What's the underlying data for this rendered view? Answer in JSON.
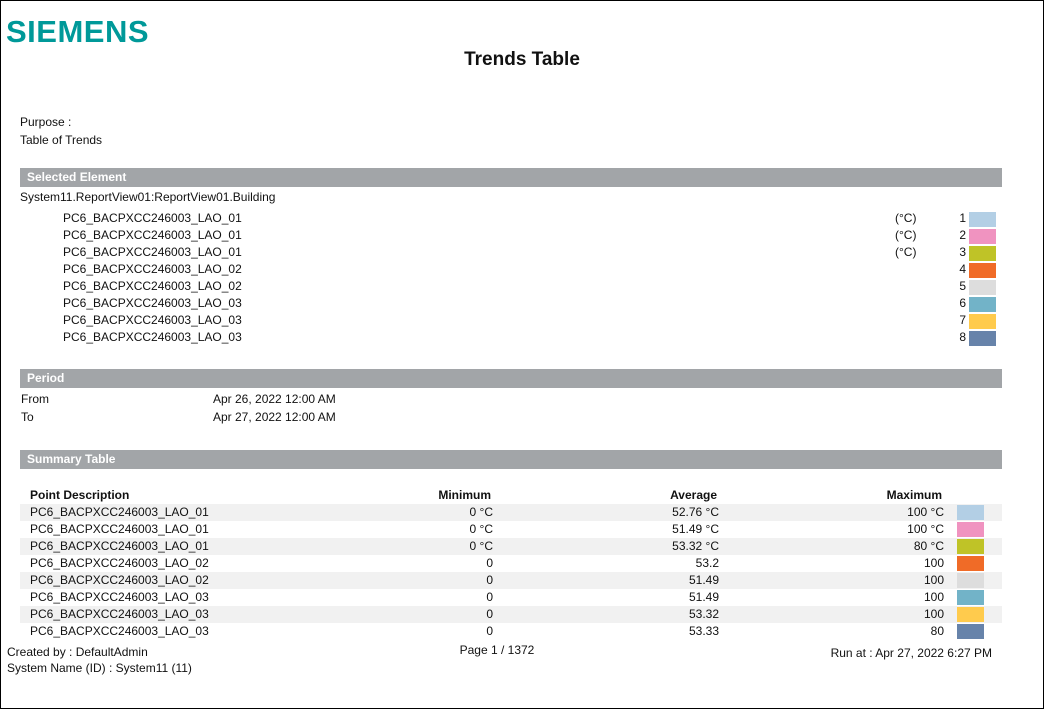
{
  "logo": "SIEMENS",
  "title": "Trends Table",
  "purpose": {
    "label": "Purpose :",
    "value": "Table of Trends"
  },
  "selected": {
    "header": "Selected Element",
    "path": "System11.ReportView01:ReportView01.Building",
    "items": [
      {
        "name": "PC6_BACPXCC246003_LAO_01",
        "unit": "(°C)",
        "num": "1",
        "color": "#b3cfe5"
      },
      {
        "name": "PC6_BACPXCC246003_LAO_01",
        "unit": "(°C)",
        "num": "2",
        "color": "#f093c0"
      },
      {
        "name": "PC6_BACPXCC246003_LAO_01",
        "unit": "(°C)",
        "num": "3",
        "color": "#bfc327"
      },
      {
        "name": "PC6_BACPXCC246003_LAO_02",
        "unit": "",
        "num": "4",
        "color": "#f06b27"
      },
      {
        "name": "PC6_BACPXCC246003_LAO_02",
        "unit": "",
        "num": "5",
        "color": "#dddddd"
      },
      {
        "name": "PC6_BACPXCC246003_LAO_03",
        "unit": "",
        "num": "6",
        "color": "#72b3c8"
      },
      {
        "name": "PC6_BACPXCC246003_LAO_03",
        "unit": "",
        "num": "7",
        "color": "#ffcb4d"
      },
      {
        "name": "PC6_BACPXCC246003_LAO_03",
        "unit": "",
        "num": "8",
        "color": "#6783aa"
      }
    ]
  },
  "period": {
    "header": "Period",
    "from_label": "From",
    "from": "Apr 26, 2022 12:00 AM",
    "to_label": "To",
    "to": "Apr 27, 2022 12:00 AM"
  },
  "summary": {
    "header": "Summary Table",
    "columns": [
      "Point Description",
      "Minimum",
      "Average",
      "Maximum"
    ],
    "rows": [
      {
        "desc": "PC6_BACPXCC246003_LAO_01",
        "min": "0 °C",
        "avg": "52.76 °C",
        "max": "100 °C",
        "color": "#b3cfe5"
      },
      {
        "desc": "PC6_BACPXCC246003_LAO_01",
        "min": "0 °C",
        "avg": "51.49 °C",
        "max": "100 °C",
        "color": "#f093c0"
      },
      {
        "desc": "PC6_BACPXCC246003_LAO_01",
        "min": "0 °C",
        "avg": "53.32 °C",
        "max": "80 °C",
        "color": "#bfc327"
      },
      {
        "desc": "PC6_BACPXCC246003_LAO_02",
        "min": "0",
        "avg": "53.2",
        "max": "100",
        "color": "#f06b27"
      },
      {
        "desc": "PC6_BACPXCC246003_LAO_02",
        "min": "0",
        "avg": "51.49",
        "max": "100",
        "color": "#dddddd"
      },
      {
        "desc": "PC6_BACPXCC246003_LAO_03",
        "min": "0",
        "avg": "51.49",
        "max": "100",
        "color": "#72b3c8"
      },
      {
        "desc": "PC6_BACPXCC246003_LAO_03",
        "min": "0",
        "avg": "53.32",
        "max": "100",
        "color": "#ffcb4d"
      },
      {
        "desc": "PC6_BACPXCC246003_LAO_03",
        "min": "0",
        "avg": "53.33",
        "max": "80",
        "color": "#6783aa"
      }
    ]
  },
  "footer": {
    "created_by": "Created by : DefaultAdmin",
    "system_name": "System Name (ID) : System11 (11)",
    "page": "Page  1 / 1372",
    "run_at": "Run at : Apr 27, 2022 6:27 PM"
  }
}
